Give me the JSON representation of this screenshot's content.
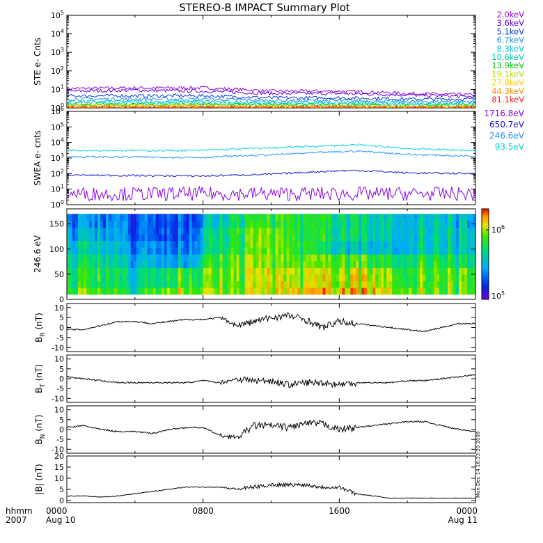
{
  "title": "STEREO-B IMPACT Summary Plot",
  "stamp": "Mon Dec 14 16:33:20 2009",
  "x_axis": {
    "unit_label": "hhmm",
    "year_label": "2007",
    "ticks": [
      {
        "h": 0,
        "label": "0000",
        "sub": "Aug 10"
      },
      {
        "h": 8,
        "label": "0800",
        "sub": ""
      },
      {
        "h": 16,
        "label": "1600",
        "sub": ""
      },
      {
        "h": 24,
        "label": "0000",
        "sub": "Aug 11"
      }
    ]
  },
  "legend_ste": [
    {
      "label": "2.0keV",
      "color": "#9400d3"
    },
    {
      "label": "3.6keV",
      "color": "#5a00e0"
    },
    {
      "label": "5.1keV",
      "color": "#0a3cdc"
    },
    {
      "label": "6.7keV",
      "color": "#1e8cf0"
    },
    {
      "label": "8.3keV",
      "color": "#00c8dc"
    },
    {
      "label": "10.6keV",
      "color": "#00c8a0"
    },
    {
      "label": "13.9keV",
      "color": "#00c800"
    },
    {
      "label": "19.1keV",
      "color": "#b4dc00"
    },
    {
      "label": "27.8keV",
      "color": "#ffc800"
    },
    {
      "label": "44.3keV",
      "color": "#ff8c00"
    },
    {
      "label": "81.1keV",
      "color": "#e61e1e"
    }
  ],
  "legend_swea": [
    {
      "label": "1716.8eV",
      "color": "#8c00e6"
    },
    {
      "label": "650.7eV",
      "color": "#1414c8"
    },
    {
      "label": "246.6eV",
      "color": "#1e90ff"
    },
    {
      "label": "93.5eV",
      "color": "#00d2d2"
    }
  ],
  "chart_data": [
    {
      "type": "line",
      "panel": "STE",
      "ylabel": "STE e- Cnts",
      "yscale": "log",
      "ylim": [
        1,
        100000
      ],
      "yticks": [
        1,
        10,
        100,
        1000,
        10000,
        100000
      ],
      "x_unit": "hours from 2007 Aug 10 0000",
      "x": [
        0,
        4,
        8,
        12,
        16,
        20,
        24
      ],
      "series": [
        {
          "name": "2.0keV",
          "values": [
            11,
            12,
            12,
            8,
            8,
            6,
            5
          ]
        },
        {
          "name": "3.6keV",
          "values": [
            8,
            9,
            8,
            6,
            6,
            5,
            4
          ]
        },
        {
          "name": "5.1keV",
          "values": [
            4.5,
            4.5,
            4.5,
            3.5,
            3.5,
            3,
            3
          ]
        },
        {
          "name": "6.7keV",
          "values": [
            3,
            3,
            3,
            2.5,
            2.5,
            2.2,
            2.2
          ]
        },
        {
          "name": "8.3keV",
          "values": [
            2.2,
            2.2,
            2.2,
            2,
            2,
            1.8,
            1.8
          ]
        },
        {
          "name": "10.6keV",
          "values": [
            1.8,
            1.8,
            1.8,
            1.6,
            1.6,
            1.5,
            1.5
          ]
        },
        {
          "name": "13.9keV",
          "values": [
            1.5,
            1.5,
            1.5,
            1.4,
            1.4,
            1.3,
            1.3
          ]
        },
        {
          "name": "19.1keV",
          "values": [
            1.3,
            1.3,
            1.3,
            1.25,
            1.25,
            1.2,
            1.2
          ]
        },
        {
          "name": "27.8keV",
          "values": [
            1.2,
            1.2,
            1.2,
            1.15,
            1.15,
            1.1,
            1.1
          ]
        },
        {
          "name": "44.3keV",
          "values": [
            1.1,
            1.1,
            1.1,
            1.1,
            1.1,
            1.05,
            1.05
          ]
        },
        {
          "name": "81.1keV",
          "values": [
            1.05,
            1.05,
            1.05,
            1.05,
            1.05,
            1.02,
            1.02
          ]
        }
      ]
    },
    {
      "type": "line",
      "panel": "SWEA",
      "ylabel": "SWEA e- cnts",
      "yscale": "log",
      "ylim": [
        1,
        1000000
      ],
      "yticks": [
        1,
        10,
        100,
        1000,
        10000,
        100000,
        1000000
      ],
      "x_unit": "hours from 2007 Aug 10 0000",
      "x": [
        0,
        4,
        8,
        12,
        16,
        17,
        20,
        24
      ],
      "series": [
        {
          "name": "1716.8eV",
          "values": [
            5,
            5,
            5,
            5,
            5,
            5,
            5,
            5
          ]
        },
        {
          "name": "650.7eV",
          "values": [
            80,
            75,
            70,
            90,
            150,
            160,
            110,
            100
          ]
        },
        {
          "name": "246.6eV",
          "values": [
            1200,
            1150,
            1100,
            1600,
            2500,
            2800,
            1700,
            1300
          ]
        },
        {
          "name": "93.5eV",
          "values": [
            3200,
            3000,
            3100,
            4500,
            6500,
            7000,
            4000,
            3000
          ]
        }
      ]
    },
    {
      "type": "heatmap",
      "panel": "PAD",
      "ylabel": "246.6 eV",
      "ylim": [
        0,
        180
      ],
      "yticks": [
        0,
        50,
        100,
        150
      ],
      "colorbar": {
        "scale": "log",
        "range": [
          100000,
          2000000
        ],
        "ticks": [
          100000,
          1000000
        ]
      },
      "x_unit": "hours from 2007 Aug 10 0000",
      "x": [
        0,
        2,
        4,
        6,
        7,
        8,
        10,
        12,
        14,
        16,
        18,
        20,
        22,
        24
      ],
      "y": [
        15,
        45,
        75,
        105,
        135,
        165
      ],
      "z_log10": [
        [
          5.9,
          5.9,
          5.7,
          5.9,
          6.0,
          6.0,
          5.9,
          6.0,
          6.1,
          6.1,
          6.1,
          6.0,
          5.9,
          5.9
        ],
        [
          5.8,
          5.8,
          5.6,
          5.7,
          5.9,
          5.9,
          5.9,
          6.0,
          6.0,
          6.0,
          6.0,
          5.9,
          5.9,
          5.9
        ],
        [
          5.7,
          5.7,
          5.5,
          5.4,
          5.5,
          5.8,
          5.9,
          5.9,
          5.9,
          5.9,
          5.8,
          5.8,
          5.8,
          5.7
        ],
        [
          5.6,
          5.6,
          5.4,
          5.3,
          5.4,
          5.6,
          5.8,
          5.9,
          5.8,
          5.6,
          5.5,
          5.6,
          5.6,
          5.6
        ],
        [
          5.5,
          5.5,
          5.3,
          5.2,
          5.3,
          5.6,
          5.8,
          5.9,
          5.8,
          5.7,
          5.6,
          5.6,
          5.6,
          5.6
        ],
        [
          5.4,
          5.4,
          5.3,
          5.2,
          5.3,
          5.5,
          5.7,
          5.8,
          5.8,
          5.7,
          5.6,
          5.6,
          5.6,
          5.5
        ]
      ]
    },
    {
      "type": "line",
      "panel": "BR",
      "ylabel": "B_R (nT)",
      "ylim": [
        -12,
        12
      ],
      "yticks": [
        -10,
        -5,
        0,
        5,
        10
      ],
      "x_unit": "hours from 2007 Aug 10 0000",
      "x": [
        0,
        1,
        2,
        3,
        4,
        5,
        6,
        7,
        8,
        9,
        10,
        11,
        12,
        13,
        14,
        15,
        16,
        17,
        18,
        19,
        20,
        21,
        22,
        23,
        24
      ],
      "series": [
        {
          "name": "",
          "values": [
            -1,
            -1,
            1,
            3,
            3,
            2,
            3,
            4,
            4,
            5,
            1,
            3,
            5,
            6,
            4,
            0,
            3,
            2,
            1,
            0,
            -1,
            -2,
            0,
            2,
            2
          ]
        }
      ]
    },
    {
      "type": "line",
      "panel": "BT",
      "ylabel": "B_T (nT)",
      "ylim": [
        -12,
        12
      ],
      "yticks": [
        -10,
        -5,
        0,
        5,
        10
      ],
      "x_unit": "hours from 2007 Aug 10 0000",
      "x": [
        0,
        1,
        2,
        3,
        4,
        5,
        6,
        7,
        8,
        9,
        10,
        11,
        12,
        13,
        14,
        15,
        16,
        17,
        18,
        19,
        20,
        21,
        22,
        23,
        24
      ],
      "series": [
        {
          "name": "",
          "values": [
            1,
            0,
            -1,
            -2,
            -2,
            -2,
            -2,
            -2,
            -1,
            -2,
            0,
            -1,
            -1,
            -3,
            -2,
            -2,
            -3,
            -2,
            -2,
            -2,
            -1,
            -1,
            0,
            1,
            2
          ]
        }
      ]
    },
    {
      "type": "line",
      "panel": "BN",
      "ylabel": "B_N (nT)",
      "ylim": [
        -12,
        12
      ],
      "yticks": [
        -10,
        -5,
        0,
        5,
        10
      ],
      "x_unit": "hours from 2007 Aug 10 0000",
      "x": [
        0,
        1,
        2,
        3,
        4,
        5,
        6,
        7,
        8,
        9,
        10,
        11,
        12,
        13,
        14,
        15,
        16,
        17,
        18,
        19,
        20,
        21,
        22,
        23,
        24
      ],
      "series": [
        {
          "name": "",
          "values": [
            1,
            2,
            0,
            -1,
            -1,
            -2,
            0,
            1,
            1,
            -3,
            -4,
            2,
            2,
            1,
            3,
            3,
            0,
            1,
            2,
            3,
            4,
            4,
            2,
            0,
            -1
          ]
        }
      ]
    },
    {
      "type": "line",
      "panel": "B",
      "ylabel": "|B| (nT)",
      "ylim": [
        -1,
        20
      ],
      "yticks": [
        0,
        5,
        10,
        15,
        20
      ],
      "x_unit": "hours from 2007 Aug 10 0000",
      "x": [
        0,
        1,
        2,
        3,
        4,
        5,
        6,
        7,
        8,
        9,
        10,
        11,
        12,
        13,
        14,
        15,
        16,
        17,
        18,
        19,
        20,
        21,
        22,
        23,
        24
      ],
      "series": [
        {
          "name": "",
          "values": [
            2,
            2,
            1.5,
            2,
            3,
            4,
            5,
            6,
            6,
            6,
            5,
            6,
            7,
            7,
            7,
            6,
            6,
            3,
            2,
            1,
            1,
            1,
            1,
            1,
            1
          ]
        }
      ]
    }
  ]
}
